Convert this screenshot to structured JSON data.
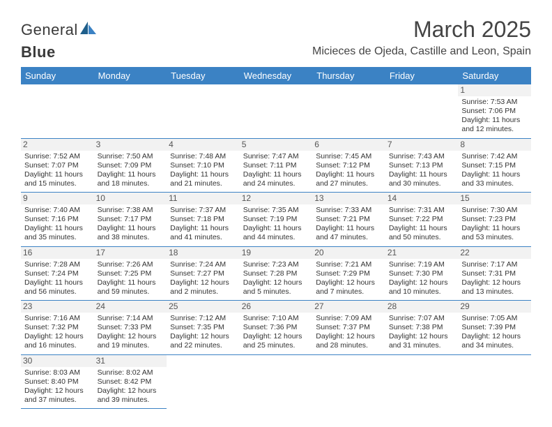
{
  "logo": {
    "text1": "General",
    "text2": "Blue"
  },
  "title": "March 2025",
  "location": "Micieces de Ojeda, Castille and Leon, Spain",
  "header_bg": "#3b82c4",
  "header_fg": "#ffffff",
  "border_color": "#3b82c4",
  "dayHeaders": [
    "Sunday",
    "Monday",
    "Tuesday",
    "Wednesday",
    "Thursday",
    "Friday",
    "Saturday"
  ],
  "weeks": [
    [
      null,
      null,
      null,
      null,
      null,
      null,
      {
        "n": "1",
        "sr": "7:53 AM",
        "ss": "7:06 PM",
        "dl": "11 hours and 12 minutes."
      }
    ],
    [
      {
        "n": "2",
        "sr": "7:52 AM",
        "ss": "7:07 PM",
        "dl": "11 hours and 15 minutes."
      },
      {
        "n": "3",
        "sr": "7:50 AM",
        "ss": "7:09 PM",
        "dl": "11 hours and 18 minutes."
      },
      {
        "n": "4",
        "sr": "7:48 AM",
        "ss": "7:10 PM",
        "dl": "11 hours and 21 minutes."
      },
      {
        "n": "5",
        "sr": "7:47 AM",
        "ss": "7:11 PM",
        "dl": "11 hours and 24 minutes."
      },
      {
        "n": "6",
        "sr": "7:45 AM",
        "ss": "7:12 PM",
        "dl": "11 hours and 27 minutes."
      },
      {
        "n": "7",
        "sr": "7:43 AM",
        "ss": "7:13 PM",
        "dl": "11 hours and 30 minutes."
      },
      {
        "n": "8",
        "sr": "7:42 AM",
        "ss": "7:15 PM",
        "dl": "11 hours and 33 minutes."
      }
    ],
    [
      {
        "n": "9",
        "sr": "7:40 AM",
        "ss": "7:16 PM",
        "dl": "11 hours and 35 minutes."
      },
      {
        "n": "10",
        "sr": "7:38 AM",
        "ss": "7:17 PM",
        "dl": "11 hours and 38 minutes."
      },
      {
        "n": "11",
        "sr": "7:37 AM",
        "ss": "7:18 PM",
        "dl": "11 hours and 41 minutes."
      },
      {
        "n": "12",
        "sr": "7:35 AM",
        "ss": "7:19 PM",
        "dl": "11 hours and 44 minutes."
      },
      {
        "n": "13",
        "sr": "7:33 AM",
        "ss": "7:21 PM",
        "dl": "11 hours and 47 minutes."
      },
      {
        "n": "14",
        "sr": "7:31 AM",
        "ss": "7:22 PM",
        "dl": "11 hours and 50 minutes."
      },
      {
        "n": "15",
        "sr": "7:30 AM",
        "ss": "7:23 PM",
        "dl": "11 hours and 53 minutes."
      }
    ],
    [
      {
        "n": "16",
        "sr": "7:28 AM",
        "ss": "7:24 PM",
        "dl": "11 hours and 56 minutes."
      },
      {
        "n": "17",
        "sr": "7:26 AM",
        "ss": "7:25 PM",
        "dl": "11 hours and 59 minutes."
      },
      {
        "n": "18",
        "sr": "7:24 AM",
        "ss": "7:27 PM",
        "dl": "12 hours and 2 minutes."
      },
      {
        "n": "19",
        "sr": "7:23 AM",
        "ss": "7:28 PM",
        "dl": "12 hours and 5 minutes."
      },
      {
        "n": "20",
        "sr": "7:21 AM",
        "ss": "7:29 PM",
        "dl": "12 hours and 7 minutes."
      },
      {
        "n": "21",
        "sr": "7:19 AM",
        "ss": "7:30 PM",
        "dl": "12 hours and 10 minutes."
      },
      {
        "n": "22",
        "sr": "7:17 AM",
        "ss": "7:31 PM",
        "dl": "12 hours and 13 minutes."
      }
    ],
    [
      {
        "n": "23",
        "sr": "7:16 AM",
        "ss": "7:32 PM",
        "dl": "12 hours and 16 minutes."
      },
      {
        "n": "24",
        "sr": "7:14 AM",
        "ss": "7:33 PM",
        "dl": "12 hours and 19 minutes."
      },
      {
        "n": "25",
        "sr": "7:12 AM",
        "ss": "7:35 PM",
        "dl": "12 hours and 22 minutes."
      },
      {
        "n": "26",
        "sr": "7:10 AM",
        "ss": "7:36 PM",
        "dl": "12 hours and 25 minutes."
      },
      {
        "n": "27",
        "sr": "7:09 AM",
        "ss": "7:37 PM",
        "dl": "12 hours and 28 minutes."
      },
      {
        "n": "28",
        "sr": "7:07 AM",
        "ss": "7:38 PM",
        "dl": "12 hours and 31 minutes."
      },
      {
        "n": "29",
        "sr": "7:05 AM",
        "ss": "7:39 PM",
        "dl": "12 hours and 34 minutes."
      }
    ],
    [
      {
        "n": "30",
        "sr": "8:03 AM",
        "ss": "8:40 PM",
        "dl": "12 hours and 37 minutes."
      },
      {
        "n": "31",
        "sr": "8:02 AM",
        "ss": "8:42 PM",
        "dl": "12 hours and 39 minutes."
      },
      null,
      null,
      null,
      null,
      null
    ]
  ],
  "labels": {
    "sunrise": "Sunrise:",
    "sunset": "Sunset:",
    "daylight": "Daylight:"
  }
}
